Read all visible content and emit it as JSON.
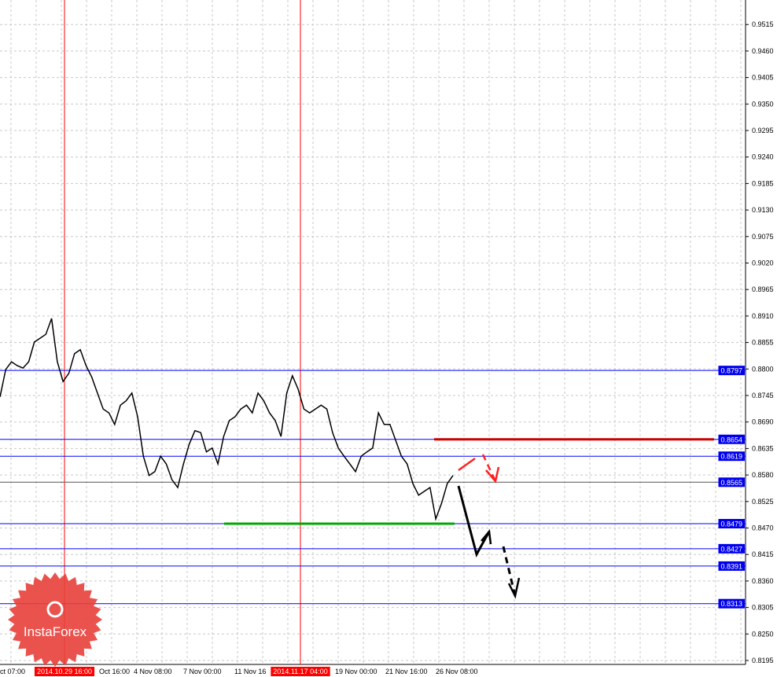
{
  "chart_data": {
    "type": "line",
    "yaxis": {
      "ticks": [
        "0.9515",
        "0.9460",
        "0.9405",
        "0.9350",
        "0.9295",
        "0.9240",
        "0.9185",
        "0.9130",
        "0.9075",
        "0.9020",
        "0.8965",
        "0.8910",
        "0.8855",
        "0.8800",
        "0.8745",
        "0.8690",
        "0.8635",
        "0.8580",
        "0.8525",
        "0.8470",
        "0.8415",
        "0.8360",
        "0.8305",
        "0.8250",
        "0.8195"
      ],
      "ylim": [
        0.8195,
        0.9515
      ],
      "position": "right"
    },
    "xaxis": {
      "ticks": [
        "ct 07:00",
        "Oct 16:00",
        "4 Nov 08:00",
        "7 Nov 00:00",
        "11 Nov 16",
        "19 Nov 00:00",
        "21 Nov 16:00",
        "26 Nov 08:00"
      ]
    },
    "highlighted_times": [
      "2014.10.29 16:00",
      "2014.11.17 04:00"
    ],
    "series": [
      {
        "color": "#000000",
        "values": [
          0.8742,
          0.8799,
          0.8815,
          0.8807,
          0.8802,
          0.8815,
          0.8856,
          0.8864,
          0.8872,
          0.8905,
          0.8815,
          0.8774,
          0.8791,
          0.8832,
          0.884,
          0.8807,
          0.8783,
          0.875,
          0.8717,
          0.8709,
          0.8685,
          0.8725,
          0.8734,
          0.875,
          0.8701,
          0.8619,
          0.8579,
          0.8587,
          0.8619,
          0.8603,
          0.857,
          0.8554,
          0.8603,
          0.8644,
          0.8672,
          0.8668,
          0.8628,
          0.8636,
          0.8603,
          0.866,
          0.8693,
          0.8701,
          0.8717,
          0.8725,
          0.8709,
          0.875,
          0.8734,
          0.8709,
          0.8693,
          0.866,
          0.875,
          0.8786,
          0.8758,
          0.8717,
          0.8709,
          0.8717,
          0.8725,
          0.8717,
          0.8668,
          0.8636,
          0.8619,
          0.8603,
          0.8587,
          0.8619,
          0.8628,
          0.8636,
          0.8709,
          0.8685,
          0.8685,
          0.8652,
          0.8619,
          0.8603,
          0.8562,
          0.8538,
          0.8546,
          0.8554,
          0.8489,
          0.8521,
          0.8562,
          0.8579
        ]
      }
    ],
    "levels": [
      {
        "label": "0.8797",
        "value": 0.8797,
        "color": "#0000ff"
      },
      {
        "label": "0.8654",
        "value": 0.8654,
        "color": "#0000ff"
      },
      {
        "label": "0.8619",
        "value": 0.8619,
        "color": "#0000ff"
      },
      {
        "label": "0.8565",
        "value": 0.8565,
        "color": "#555555"
      },
      {
        "label": "0.8479",
        "value": 0.8479,
        "color": "#0000ff"
      },
      {
        "label": "0.8427",
        "value": 0.8427,
        "color": "#0000ff"
      },
      {
        "label": "0.8391",
        "value": 0.8391,
        "color": "#0000ff"
      },
      {
        "label": "0.8313",
        "value": 0.8313,
        "color": "#0000ff"
      }
    ],
    "resistance": {
      "value": 0.8654,
      "color": "#cc0000"
    },
    "support": {
      "value": 0.8479,
      "color": "#00aa00"
    },
    "grid": true
  },
  "logo": {
    "text": "InstaForex",
    "color": "#e8403a"
  }
}
